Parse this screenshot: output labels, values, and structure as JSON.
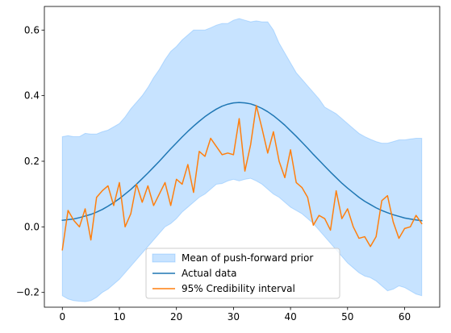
{
  "chart_data": {
    "type": "line",
    "title": "",
    "xlabel": "",
    "ylabel": "",
    "xlim": [
      -3.15,
      66.15
    ],
    "ylim": [
      -0.245,
      0.672
    ],
    "xticks": [
      0,
      10,
      20,
      30,
      40,
      50,
      60
    ],
    "xtick_labels": [
      "0",
      "10",
      "20",
      "30",
      "40",
      "50",
      "60"
    ],
    "yticks": [
      -0.2,
      0.0,
      0.2,
      0.4,
      0.6
    ],
    "ytick_labels": [
      "−0.2",
      "0.0",
      "0.2",
      "0.4",
      "0.6"
    ],
    "grid": false,
    "legend_position": "bottom-center",
    "x": [
      0,
      1,
      2,
      3,
      4,
      5,
      6,
      7,
      8,
      9,
      10,
      11,
      12,
      13,
      14,
      15,
      16,
      17,
      18,
      19,
      20,
      21,
      22,
      23,
      24,
      25,
      26,
      27,
      28,
      29,
      30,
      31,
      32,
      33,
      34,
      35,
      36,
      37,
      38,
      39,
      40,
      41,
      42,
      43,
      44,
      45,
      46,
      47,
      48,
      49,
      50,
      51,
      52,
      53,
      54,
      55,
      56,
      57,
      58,
      59,
      60,
      61,
      62,
      63
    ],
    "band": {
      "name": "Mean of push-forward prior",
      "color": "#1e90ff",
      "lower": [
        -0.21,
        -0.22,
        -0.225,
        -0.227,
        -0.228,
        -0.225,
        -0.215,
        -0.2,
        -0.19,
        -0.175,
        -0.16,
        -0.14,
        -0.12,
        -0.1,
        -0.08,
        -0.06,
        -0.04,
        -0.02,
        0.0,
        0.01,
        0.025,
        0.045,
        0.06,
        0.075,
        0.09,
        0.1,
        0.115,
        0.13,
        0.132,
        0.14,
        0.145,
        0.14,
        0.145,
        0.148,
        0.14,
        0.13,
        0.115,
        0.1,
        0.09,
        0.075,
        0.06,
        0.05,
        0.04,
        0.025,
        0.01,
        -0.01,
        -0.03,
        -0.05,
        -0.07,
        -0.09,
        -0.11,
        -0.125,
        -0.14,
        -0.15,
        -0.155,
        -0.165,
        -0.18,
        -0.195,
        -0.19,
        -0.18,
        -0.185,
        -0.195,
        -0.205,
        -0.21
      ],
      "upper": [
        0.275,
        0.278,
        0.275,
        0.275,
        0.285,
        0.283,
        0.283,
        0.29,
        0.295,
        0.305,
        0.315,
        0.335,
        0.36,
        0.38,
        0.4,
        0.425,
        0.455,
        0.48,
        0.51,
        0.535,
        0.55,
        0.57,
        0.585,
        0.6,
        0.6,
        0.6,
        0.607,
        0.615,
        0.62,
        0.62,
        0.63,
        0.635,
        0.63,
        0.625,
        0.628,
        0.625,
        0.625,
        0.6,
        0.56,
        0.53,
        0.5,
        0.47,
        0.45,
        0.43,
        0.41,
        0.39,
        0.365,
        0.355,
        0.345,
        0.33,
        0.315,
        0.3,
        0.285,
        0.275,
        0.267,
        0.26,
        0.255,
        0.255,
        0.26,
        0.265,
        0.265,
        0.268,
        0.27,
        0.27
      ]
    },
    "series": [
      {
        "name": "Actual data",
        "color": "#1f77b4",
        "values": [
          0.02,
          0.022,
          0.024,
          0.028,
          0.033,
          0.038,
          0.045,
          0.053,
          0.063,
          0.074,
          0.086,
          0.1,
          0.114,
          0.13,
          0.147,
          0.164,
          0.182,
          0.2,
          0.219,
          0.238,
          0.256,
          0.274,
          0.291,
          0.307,
          0.322,
          0.336,
          0.348,
          0.359,
          0.368,
          0.374,
          0.378,
          0.379,
          0.378,
          0.375,
          0.369,
          0.361,
          0.351,
          0.339,
          0.325,
          0.31,
          0.293,
          0.276,
          0.258,
          0.24,
          0.221,
          0.203,
          0.185,
          0.167,
          0.15,
          0.133,
          0.118,
          0.104,
          0.09,
          0.078,
          0.068,
          0.058,
          0.05,
          0.043,
          0.037,
          0.032,
          0.027,
          0.024,
          0.021,
          0.019
        ]
      },
      {
        "name": "95% Credibility interval",
        "color": "#ff7f0e",
        "values": [
          -0.07,
          0.05,
          0.02,
          0.0,
          0.055,
          -0.04,
          0.09,
          0.11,
          0.125,
          0.065,
          0.135,
          0.0,
          0.04,
          0.13,
          0.075,
          0.125,
          0.065,
          0.1,
          0.135,
          0.065,
          0.145,
          0.13,
          0.19,
          0.105,
          0.23,
          0.215,
          0.27,
          0.245,
          0.22,
          0.225,
          0.22,
          0.33,
          0.17,
          0.25,
          0.37,
          0.3,
          0.225,
          0.29,
          0.2,
          0.15,
          0.235,
          0.135,
          0.12,
          0.09,
          0.005,
          0.035,
          0.025,
          -0.01,
          0.11,
          0.025,
          0.055,
          0.0,
          -0.035,
          -0.03,
          -0.06,
          -0.03,
          0.08,
          0.095,
          0.015,
          -0.035,
          -0.005,
          0.0,
          0.035,
          0.01
        ]
      }
    ]
  }
}
